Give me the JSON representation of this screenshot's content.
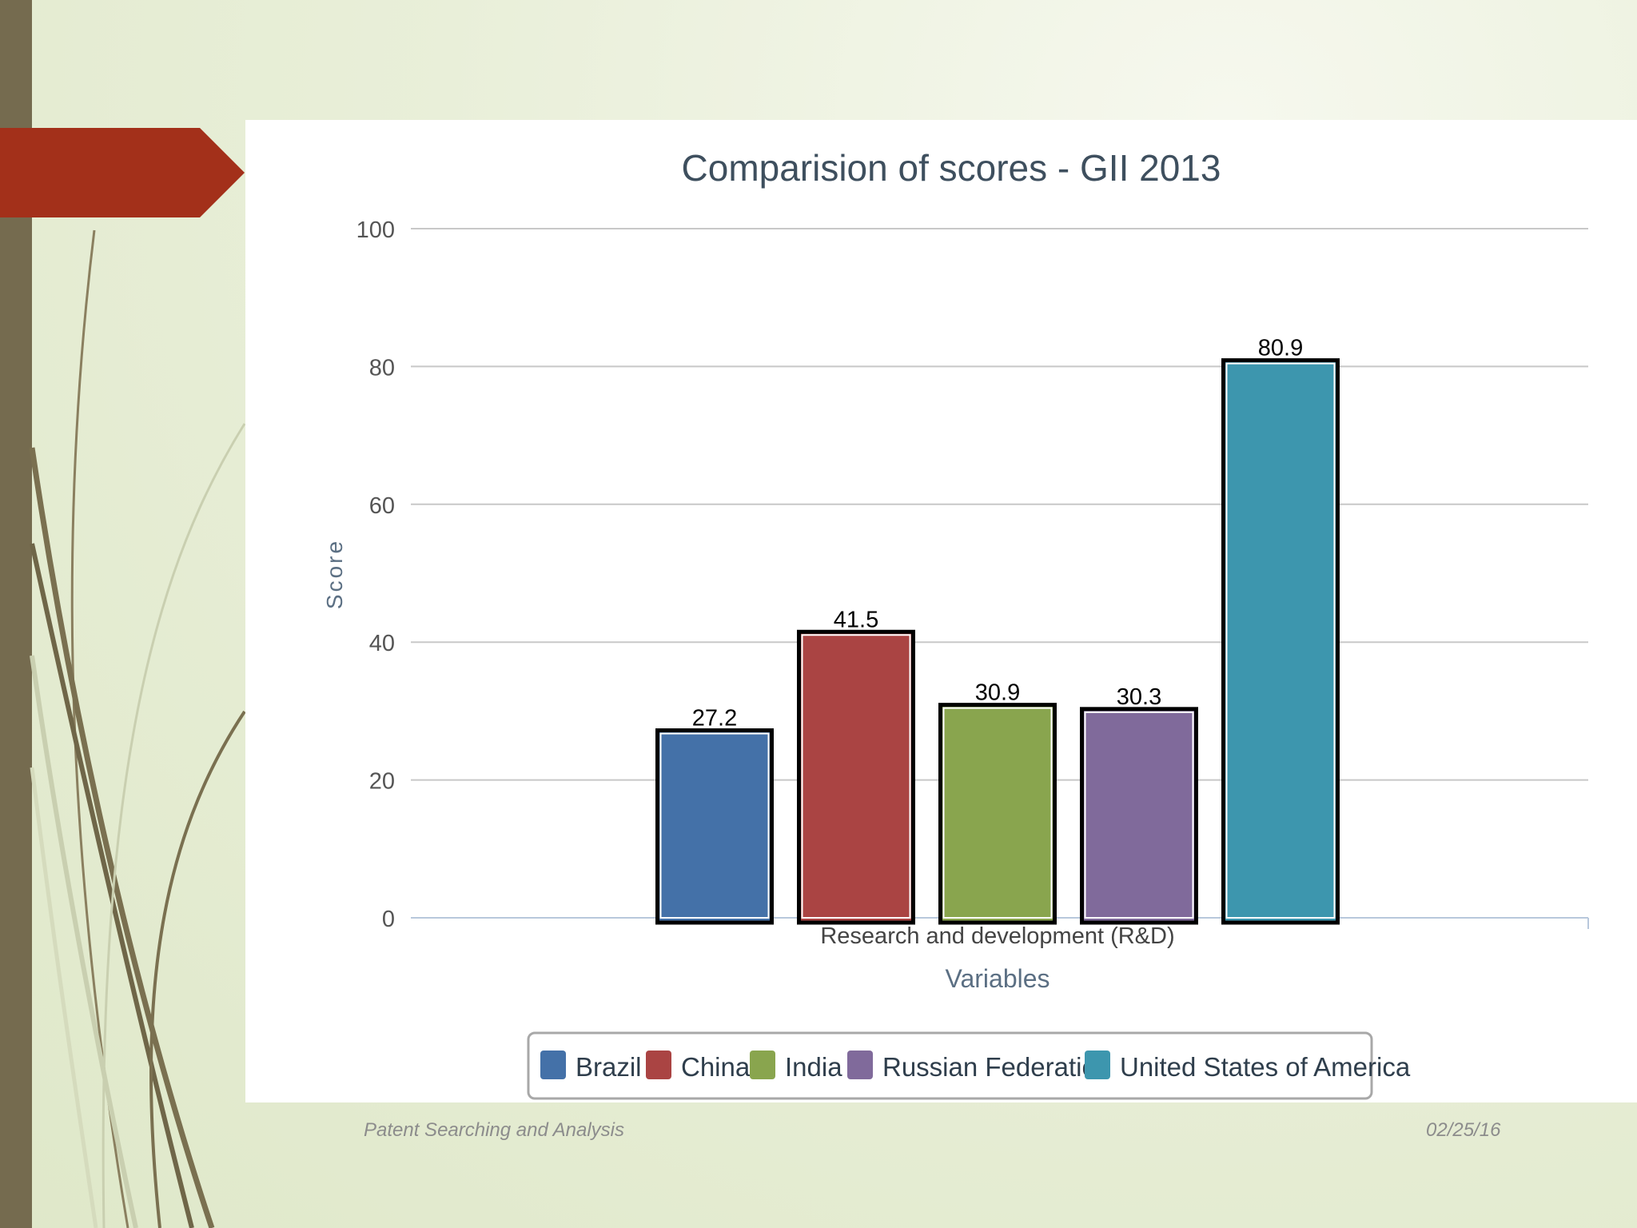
{
  "slide": {
    "footer_left": "Patent Searching and Analysis",
    "footer_right": "02/25/16",
    "accent_color": "#a3301a",
    "sidebar_color": "#756b4f"
  },
  "chart_data": {
    "type": "bar",
    "title": "Comparision of scores - GII 2013",
    "xlabel": "Variables",
    "ylabel": "Score",
    "categories": [
      "Research and development (R&D)"
    ],
    "ylim": [
      0,
      100
    ],
    "yticks": [
      0,
      20,
      40,
      60,
      80,
      100
    ],
    "grid": true,
    "legend_position": "bottom",
    "series": [
      {
        "name": "Brazil",
        "values": [
          27.2
        ],
        "color": "#4471a8"
      },
      {
        "name": "China",
        "values": [
          41.5
        ],
        "color": "#aa4443"
      },
      {
        "name": "India",
        "values": [
          30.9
        ],
        "color": "#89a54e"
      },
      {
        "name": "Russian Federation",
        "values": [
          30.3
        ],
        "color": "#806a9b"
      },
      {
        "name": "United States of America",
        "values": [
          80.9
        ],
        "color": "#3d96ae"
      }
    ]
  }
}
